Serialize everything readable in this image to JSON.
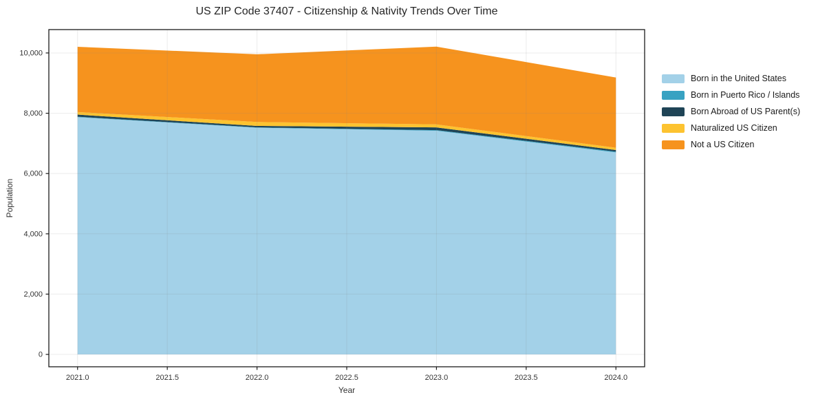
{
  "chart_data": {
    "type": "area",
    "stacked": true,
    "title": "US ZIP Code 37407 - Citizenship & Nativity Trends Over Time",
    "xlabel": "Year",
    "ylabel": "Population",
    "x": [
      2021,
      2022,
      2023,
      2024
    ],
    "series": [
      {
        "name": "Born in the United States",
        "color": "#a3d1e8",
        "values": [
          7870,
          7520,
          7420,
          6700
        ]
      },
      {
        "name": "Born in Puerto Rico / Islands",
        "color": "#38a2c2",
        "values": [
          15,
          10,
          20,
          25
        ]
      },
      {
        "name": "Born Abroad of US Parent(s)",
        "color": "#1f4456",
        "values": [
          70,
          50,
          90,
          55
        ]
      },
      {
        "name": "Naturalized US Citizen",
        "color": "#fdc330",
        "values": [
          85,
          130,
          100,
          75
        ]
      },
      {
        "name": "Not a US Citizen",
        "color": "#f6931e",
        "values": [
          2165,
          2245,
          2580,
          2330
        ]
      }
    ],
    "totals": [
      10205,
      9955,
      10210,
      9185
    ],
    "x_ticks": [
      2021.0,
      2021.5,
      2022.0,
      2022.5,
      2023.0,
      2023.5,
      2024.0
    ],
    "x_tick_labels": [
      "2021.0",
      "2021.5",
      "2022.0",
      "2022.5",
      "2023.0",
      "2023.5",
      "2024.0"
    ],
    "y_ticks": [
      0,
      2000,
      4000,
      6000,
      8000,
      10000
    ],
    "y_tick_labels": [
      "0",
      "2,000",
      "4,000",
      "6,000",
      "8,000",
      "10,000"
    ],
    "xlim": [
      2020.84,
      2024.16
    ],
    "ylim": [
      -410,
      10775
    ],
    "grid": true,
    "grid_rgba": "rgba(128,128,128,0.16)",
    "axis_color": "#1a1a1a",
    "text_color": "#333333",
    "legend_position": "right-outside"
  }
}
